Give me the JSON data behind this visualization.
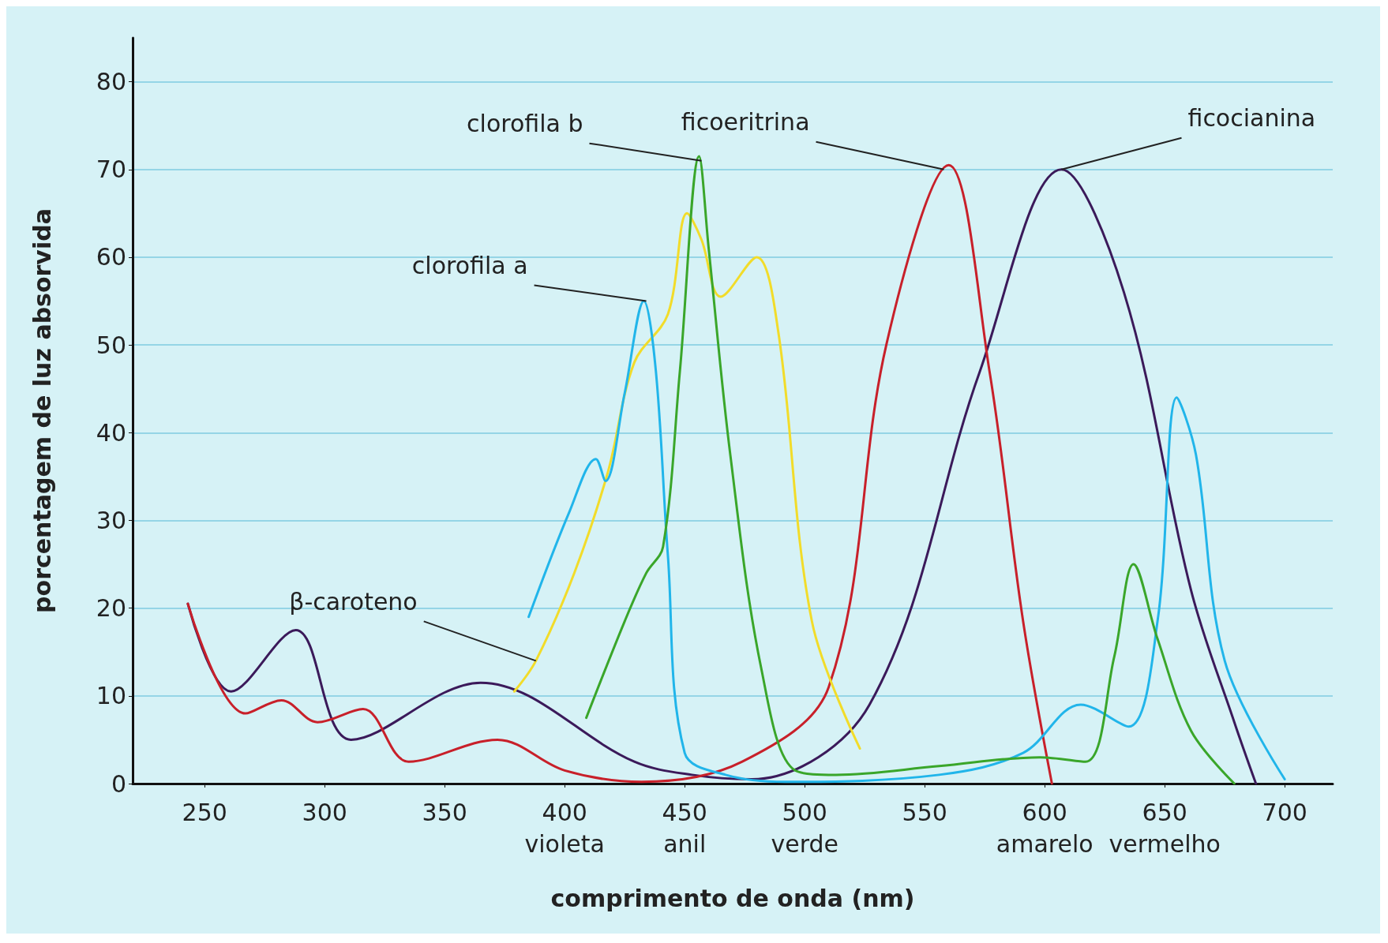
{
  "chart_data": {
    "type": "line",
    "xlabel": "comprimento de onda (nm)",
    "ylabel": "porcentagem de luz absorvida",
    "xlim": [
      220,
      720
    ],
    "ylim": [
      0,
      85
    ],
    "xticks": [
      {
        "value": 250,
        "label": "250"
      },
      {
        "value": 300,
        "label": "300"
      },
      {
        "value": 350,
        "label": "350"
      },
      {
        "value": 400,
        "label": "400\nvioleta"
      },
      {
        "value": 450,
        "label": "450\nanil"
      },
      {
        "value": 500,
        "label": "500\nverde"
      },
      {
        "value": 550,
        "label": "550"
      },
      {
        "value": 600,
        "label": "600\namarelo"
      },
      {
        "value": 650,
        "label": "650\nvermelho"
      },
      {
        "value": 700,
        "label": "700"
      }
    ],
    "yticks": [
      0,
      10,
      20,
      30,
      40,
      50,
      60,
      70,
      80
    ],
    "grid": "y",
    "marker": "none",
    "line_style": "solid",
    "series": [
      {
        "color": "#3b1a5a",
        "x": [
          243,
          261,
          288,
          311,
          365,
          429,
          453,
          478,
          527,
          573,
          607,
          633,
          661,
          679,
          688
        ],
        "values": [
          20.5,
          10.5,
          17.5,
          5,
          11.5,
          2.5,
          1,
          0.5,
          9,
          47,
          70,
          56,
          22,
          7,
          0
        ]
      },
      {
        "color": "#c8202a",
        "x": [
          243,
          267,
          282,
          297,
          316,
          335,
          372,
          400,
          432,
          474,
          510,
          534,
          560,
          577,
          591,
          603
        ],
        "values": [
          20.5,
          8,
          9.5,
          7,
          8.5,
          2.5,
          5,
          1.5,
          0.2,
          2.5,
          11,
          50,
          70.5,
          47,
          18.5,
          0
        ]
      },
      {
        "color": "#f2dc2a",
        "x": [
          379,
          388,
          404,
          418,
          429,
          443,
          451,
          457,
          465,
          480,
          489,
          503,
          523
        ],
        "values": [
          10.5,
          14,
          24,
          35.5,
          48,
          53.5,
          65,
          62,
          55.5,
          60,
          51.5,
          18.5,
          4
        ]
      },
      {
        "color": "#21b5ea",
        "x": [
          385,
          402,
          413,
          417,
          425,
          433,
          438,
          443,
          450,
          467,
          492,
          556,
          591,
          615,
          635,
          647,
          655,
          663,
          675,
          700
        ],
        "values": [
          19,
          31,
          37,
          34.5,
          44.5,
          55,
          47,
          26,
          3.5,
          1,
          0.2,
          1,
          3.5,
          9,
          6.5,
          18.5,
          44,
          37.5,
          14,
          0.5
        ]
      },
      {
        "color": "#3aa62a",
        "x": [
          409,
          425,
          434,
          441,
          448,
          456,
          460,
          469,
          482,
          496,
          513,
          556,
          598,
          617,
          629,
          637,
          647,
          661,
          679
        ],
        "values": [
          7.5,
          18.5,
          24,
          27,
          47,
          71.5,
          61,
          37.5,
          13,
          1.5,
          1,
          2,
          3,
          2.5,
          14.5,
          25,
          16.5,
          6,
          0
        ]
      }
    ],
    "annotations": [
      {
        "text": "clorofila b",
        "x": 457,
        "y": 71
      },
      {
        "text": "ficoeritrina",
        "x": 558,
        "y": 70
      },
      {
        "text": "ficocianina",
        "x": 607,
        "y": 70
      },
      {
        "text": "clorofila a",
        "x": 434,
        "y": 55
      },
      {
        "text": "β-caroteno",
        "x": 388,
        "y": 14
      }
    ]
  }
}
